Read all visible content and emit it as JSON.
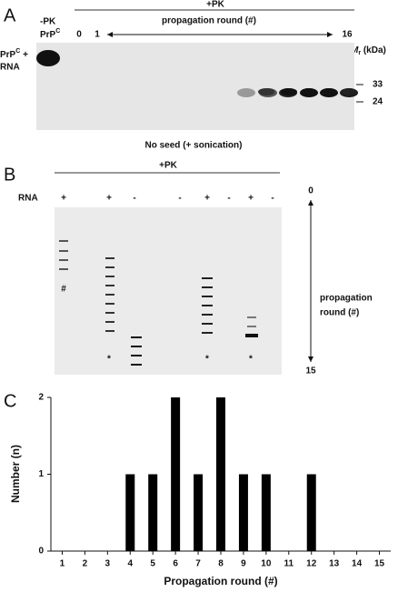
{
  "panel_a": {
    "letter": "A",
    "pk": "+PK",
    "minus_pk": "-PK",
    "prp": "PrP",
    "prp_sup": "C",
    "lane0": "0",
    "lane1": "1",
    "propagation": "propagation round (#)",
    "last_lane": "16",
    "mr": "M",
    "mr_sub": "r",
    "kda": " (kDa)",
    "side_prp": "PrP",
    "side_sup": "C",
    "side_plus": " +",
    "side_rna": "RNA",
    "marker_high": "33",
    "marker_low": "24",
    "caption": "No seed (+ sonication)"
  },
  "panel_b": {
    "letter": "B",
    "pk": "+PK",
    "rna": "RNA",
    "rna_signs": [
      "+",
      "+",
      "-",
      "-",
      "+",
      "-",
      "+",
      "-"
    ],
    "hash": "#",
    "stars": [
      "*",
      "*",
      "*"
    ],
    "axis_top": "0",
    "axis_bottom": "15",
    "axis_label_1": "propagation",
    "axis_label_2": "round (#)"
  },
  "chart_data": {
    "type": "bar",
    "letter": "C",
    "x_label": "Propagation round (#)",
    "y_label": "Number (n)",
    "categories": [
      "1",
      "2",
      "3",
      "4",
      "5",
      "6",
      "7",
      "8",
      "9",
      "10",
      "11",
      "12",
      "13",
      "14",
      "15"
    ],
    "values": [
      0,
      0,
      0,
      1,
      1,
      2,
      1,
      2,
      1,
      1,
      0,
      1,
      0,
      0,
      0
    ],
    "color": "#000000",
    "ylim": [
      0,
      2
    ],
    "yticks": [
      0,
      1,
      2
    ]
  }
}
